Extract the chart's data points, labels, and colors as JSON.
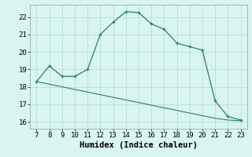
{
  "x": [
    7,
    8,
    9,
    10,
    11,
    12,
    13,
    14,
    15,
    16,
    17,
    18,
    19,
    20,
    21,
    22,
    23
  ],
  "y_curve": [
    18.3,
    19.2,
    18.6,
    18.6,
    19.0,
    21.0,
    21.7,
    22.3,
    22.25,
    21.6,
    21.3,
    20.5,
    20.3,
    20.1,
    17.2,
    16.3,
    16.1
  ],
  "y_line": [
    18.3,
    18.15,
    18.0,
    17.85,
    17.7,
    17.55,
    17.4,
    17.25,
    17.1,
    16.95,
    16.8,
    16.65,
    16.5,
    16.35,
    16.2,
    16.1,
    16.05
  ],
  "xlim": [
    6.5,
    23.5
  ],
  "ylim": [
    15.6,
    22.7
  ],
  "xticks": [
    7,
    8,
    9,
    10,
    11,
    12,
    13,
    14,
    15,
    16,
    17,
    18,
    19,
    20,
    21,
    22,
    23
  ],
  "yticks": [
    16,
    17,
    18,
    19,
    20,
    21,
    22
  ],
  "xlabel": "Humidex (Indice chaleur)",
  "line_color": "#2d7d6e",
  "bg_color": "#d9f5f0",
  "grid_color": "#b8ddd8",
  "tick_fontsize": 6.5,
  "xlabel_fontsize": 7.5,
  "marker": "+"
}
